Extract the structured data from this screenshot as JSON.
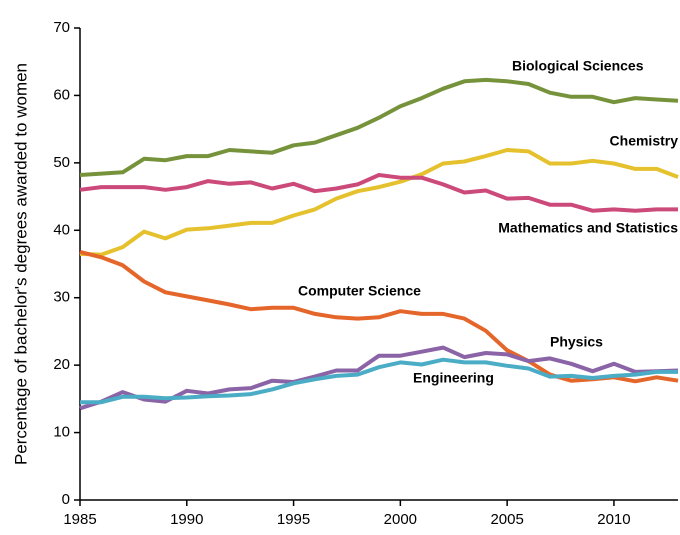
{
  "chart_data": {
    "type": "line",
    "y_label": "Percentage of bachelor's degrees awarded to women",
    "x": [
      1985,
      1986,
      1987,
      1988,
      1989,
      1990,
      1991,
      1992,
      1993,
      1994,
      1995,
      1996,
      1997,
      1998,
      1999,
      2000,
      2001,
      2002,
      2003,
      2004,
      2005,
      2006,
      2007,
      2008,
      2009,
      2010,
      2011,
      2012,
      2013
    ],
    "series": [
      {
        "name": "Biological Sciences",
        "color": "#76933c",
        "values": [
          48.2,
          48.4,
          48.6,
          50.6,
          50.4,
          51.0,
          51.0,
          51.9,
          51.7,
          51.5,
          52.6,
          53.0,
          54.1,
          55.2,
          56.7,
          58.4,
          59.6,
          61.0,
          62.1,
          62.3,
          62.1,
          61.7,
          60.4,
          59.8,
          59.8,
          59.0,
          59.6,
          59.4,
          59.2
        ]
      },
      {
        "name": "Chemistry",
        "color": "#e6c12e",
        "values": [
          36.5,
          36.4,
          37.5,
          39.8,
          38.8,
          40.1,
          40.3,
          40.7,
          41.1,
          41.1,
          42.2,
          43.1,
          44.7,
          45.8,
          46.4,
          47.2,
          48.3,
          49.9,
          50.2,
          51.0,
          51.9,
          51.7,
          49.9,
          49.9,
          50.3,
          49.9,
          49.1,
          49.1,
          47.9
        ]
      },
      {
        "name": "Mathematics and Statistics",
        "color": "#cc4a7a",
        "values": [
          46.0,
          46.4,
          46.4,
          46.4,
          46.0,
          46.4,
          47.3,
          46.9,
          47.1,
          46.2,
          46.9,
          45.8,
          46.2,
          46.8,
          48.2,
          47.8,
          47.8,
          46.8,
          45.6,
          45.9,
          44.7,
          44.8,
          43.8,
          43.8,
          42.9,
          43.1,
          42.9,
          43.1,
          43.1
        ]
      },
      {
        "name": "Computer Science",
        "color": "#e5662a",
        "values": [
          36.8,
          36.0,
          34.8,
          32.4,
          30.8,
          30.2,
          29.6,
          29.0,
          28.3,
          28.5,
          28.5,
          27.6,
          27.1,
          26.9,
          27.1,
          28.0,
          27.6,
          27.6,
          26.9,
          25.1,
          22.2,
          20.6,
          18.6,
          17.7,
          17.9,
          18.2,
          17.6,
          18.2,
          17.7
        ]
      },
      {
        "name": "Physics",
        "color": "#8a64a6",
        "values": [
          13.6,
          14.6,
          16.0,
          14.9,
          14.6,
          16.2,
          15.8,
          16.4,
          16.6,
          17.7,
          17.5,
          18.3,
          19.2,
          19.2,
          21.4,
          21.4,
          22.0,
          22.6,
          21.2,
          21.8,
          21.6,
          20.6,
          21.0,
          20.2,
          19.1,
          20.2,
          19.0,
          19.1,
          19.2
        ]
      },
      {
        "name": "Engineering",
        "color": "#4bacc6",
        "values": [
          14.5,
          14.5,
          15.3,
          15.3,
          15.1,
          15.2,
          15.4,
          15.5,
          15.7,
          16.4,
          17.3,
          17.9,
          18.4,
          18.6,
          19.7,
          20.4,
          20.1,
          20.8,
          20.4,
          20.4,
          19.9,
          19.5,
          18.3,
          18.4,
          18.1,
          18.4,
          18.6,
          19.0,
          19.0
        ]
      }
    ],
    "xlim": [
      1985,
      2013
    ],
    "xticks": [
      1985,
      1990,
      1995,
      2000,
      2005,
      2010
    ],
    "ylim": [
      0,
      70
    ],
    "yticks": [
      0,
      10,
      20,
      30,
      40,
      50,
      60,
      70
    ],
    "grid": false
  }
}
